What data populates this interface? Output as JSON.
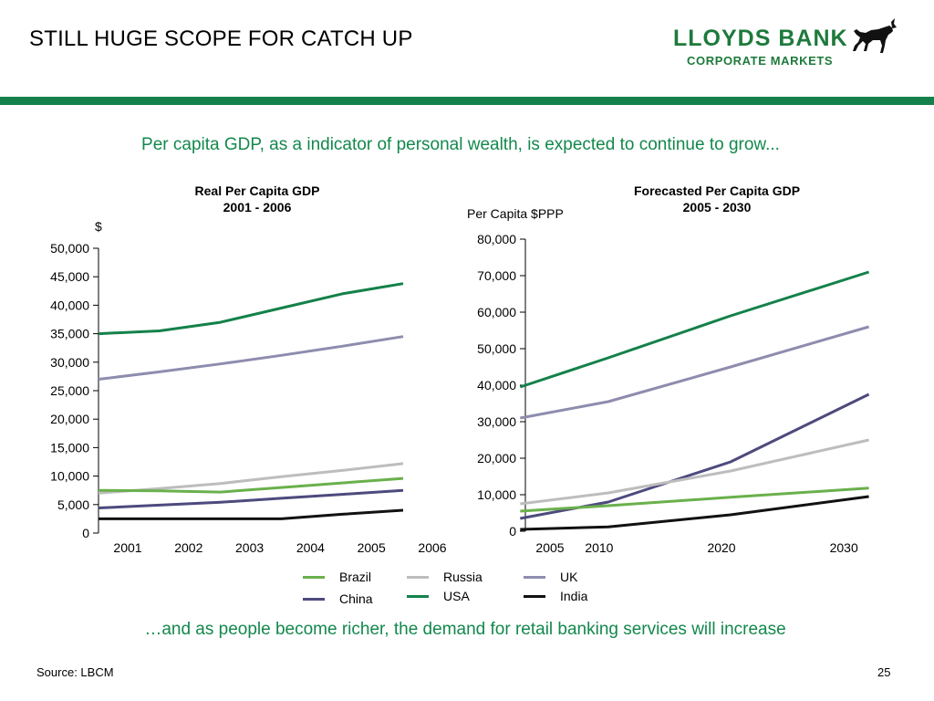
{
  "header": {
    "title": "STILL HUGE SCOPE FOR CATCH UP",
    "logo_line1": "LLOYDS BANK",
    "logo_line2": "CORPORATE MARKETS"
  },
  "subtitle": "Per capita GDP, as a indicator of personal wealth, is expected to continue to grow...",
  "footer_text": "…and as people become richer, the demand for retail banking services will increase",
  "source": "Source: LBCM",
  "page_number": "25",
  "colors": {
    "Brazil": "#6ab04c",
    "Russia": "#bdbdbd",
    "UK": "#8e8cae",
    "China": "#4d4a7e",
    "USA": "#14814a",
    "India": "#111111",
    "accent": "#13884c"
  },
  "legend": [
    {
      "name": "Brazil"
    },
    {
      "name": "Russia"
    },
    {
      "name": "UK"
    },
    {
      "name": "China"
    },
    {
      "name": "USA"
    },
    {
      "name": "India"
    }
  ],
  "chart_data": [
    {
      "type": "line",
      "title": "Real Per Capita GDP",
      "subtitle": "2001 - 2006",
      "ylabel": "$",
      "xlabel": "",
      "x": [
        "2001",
        "2002",
        "2003",
        "2004",
        "2005",
        "2006"
      ],
      "ylim": [
        0,
        50000
      ],
      "yticks": [
        0,
        5000,
        10000,
        15000,
        20000,
        25000,
        30000,
        35000,
        40000,
        45000,
        50000
      ],
      "ytick_labels": [
        "0",
        "5,000",
        "10,000",
        "15,000",
        "20,000",
        "25,000",
        "30,000",
        "35,000",
        "40,000",
        "45,000",
        "50,000"
      ],
      "grid": false,
      "series": [
        {
          "name": "USA",
          "values": [
            35000,
            35500,
            37000,
            39500,
            42000,
            43800
          ]
        },
        {
          "name": "UK",
          "values": [
            27000,
            28300,
            29700,
            31200,
            32800,
            34500
          ]
        },
        {
          "name": "Russia",
          "values": [
            7000,
            7800,
            8700,
            9900,
            11000,
            12200
          ]
        },
        {
          "name": "Brazil",
          "values": [
            7500,
            7400,
            7200,
            8000,
            8800,
            9600
          ]
        },
        {
          "name": "China",
          "values": [
            4400,
            4900,
            5400,
            6100,
            6800,
            7500
          ]
        },
        {
          "name": "India",
          "values": [
            2500,
            2500,
            2500,
            2500,
            3300,
            4000
          ]
        }
      ]
    },
    {
      "type": "line",
      "title": "Forecasted Per Capita GDP",
      "subtitle": "2005 - 2030",
      "ylabel": "Per Capita $PPP",
      "xlabel": "",
      "x": [
        2005,
        2010,
        2020,
        2030
      ],
      "xlim": [
        2003,
        2032
      ],
      "ylim": [
        0,
        80000
      ],
      "yticks": [
        0,
        10000,
        20000,
        30000,
        40000,
        50000,
        60000,
        70000,
        80000
      ],
      "ytick_labels": [
        "0",
        "10,000",
        "20,000",
        "30,000",
        "40,000",
        "50,000",
        "60,000",
        "70,000",
        "80,000"
      ],
      "grid": false,
      "series": [
        {
          "name": "USA",
          "x": [
            2002.8,
            2010,
            2020,
            2031.3
          ],
          "values": [
            39500,
            47500,
            59000,
            71000
          ]
        },
        {
          "name": "UK",
          "x": [
            2002.8,
            2010,
            2020,
            2031.3
          ],
          "values": [
            31000,
            35500,
            45000,
            56000
          ]
        },
        {
          "name": "China",
          "x": [
            2002.8,
            2010,
            2020,
            2031.3
          ],
          "values": [
            3500,
            8000,
            19000,
            37500
          ]
        },
        {
          "name": "Russia",
          "x": [
            2002.8,
            2010,
            2020,
            2031.3
          ],
          "values": [
            7500,
            10500,
            16500,
            25000
          ]
        },
        {
          "name": "Brazil",
          "x": [
            2002.8,
            2010,
            2020,
            2031.3
          ],
          "values": [
            5500,
            7000,
            9300,
            11800
          ]
        },
        {
          "name": "India",
          "x": [
            2002.8,
            2010,
            2020,
            2031.3
          ],
          "values": [
            500,
            1200,
            4500,
            9500
          ]
        }
      ]
    }
  ]
}
